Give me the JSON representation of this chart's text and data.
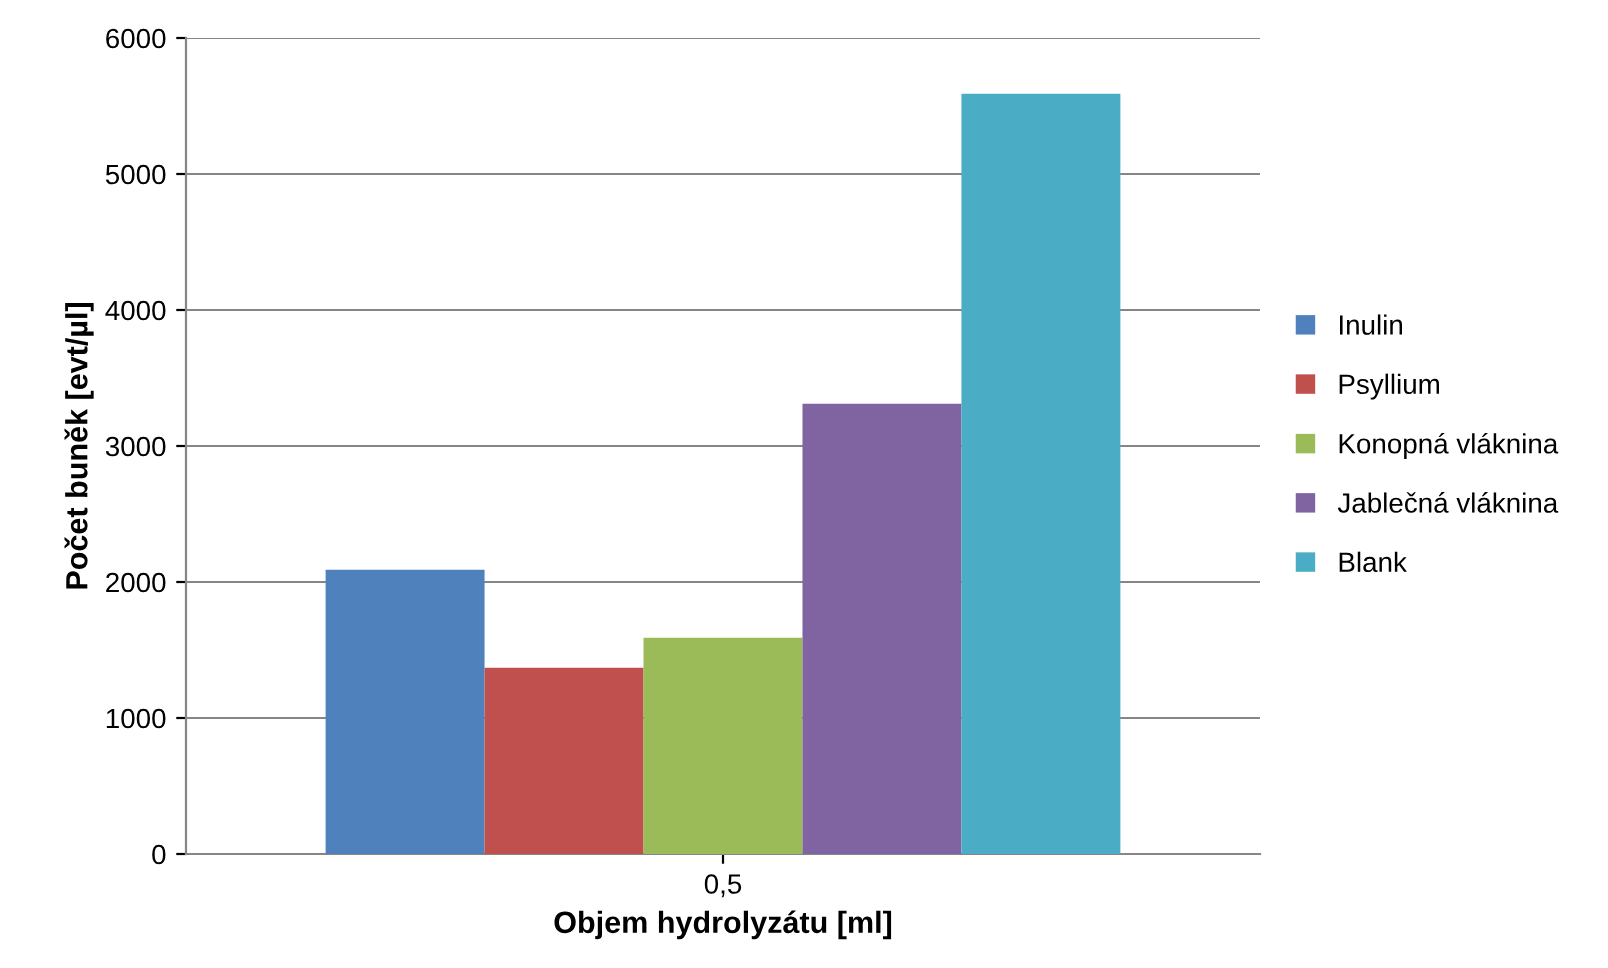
{
  "chart_data": {
    "type": "bar",
    "xlabel": "Objem hydrolyzátu [ml]",
    "ylabel": "Počet buněk [evt/µl]",
    "categories": [
      "0,5"
    ],
    "series": [
      {
        "name": "Inulin",
        "color": "#4f81bd",
        "values": [
          2090
        ]
      },
      {
        "name": "Psyllium",
        "color": "#c0504d",
        "values": [
          1370
        ]
      },
      {
        "name": "Konopná vláknina",
        "color": "#9bbb59",
        "values": [
          1590
        ]
      },
      {
        "name": "Jablečná vláknina",
        "color": "#8064a2",
        "values": [
          3310
        ]
      },
      {
        "name": "Blank",
        "color": "#4bacc6",
        "values": [
          5590
        ]
      }
    ],
    "ylim": [
      0,
      6000
    ],
    "yticks": [
      0,
      1000,
      2000,
      3000,
      4000,
      5000,
      6000
    ],
    "grid": "y",
    "legend": "right"
  }
}
